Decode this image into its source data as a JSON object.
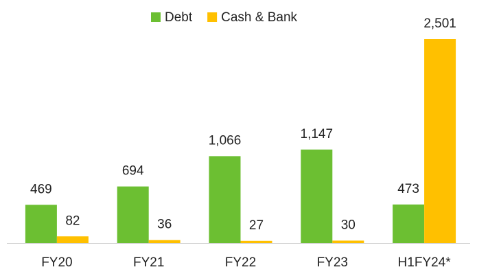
{
  "chart_data": {
    "type": "bar",
    "categories": [
      "FY20",
      "FY21",
      "FY22",
      "FY23",
      "H1FY24*"
    ],
    "series": [
      {
        "name": "Debt",
        "color": "#6cbf32",
        "values": [
          469,
          694,
          1066,
          1147,
          473
        ],
        "value_labels": [
          "469",
          "694",
          "1,066",
          "1,147",
          "473"
        ]
      },
      {
        "name": "Cash & Bank",
        "color": "#ffc000",
        "values": [
          82,
          36,
          27,
          30,
          2501
        ],
        "value_labels": [
          "82",
          "36",
          "27",
          "30",
          "2,501"
        ]
      }
    ],
    "grid": false
  }
}
